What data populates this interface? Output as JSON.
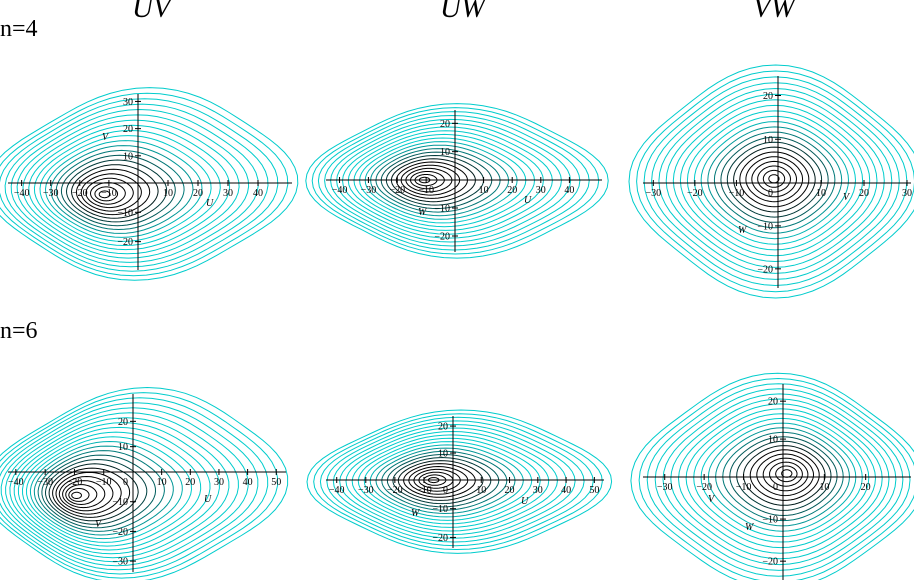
{
  "column_titles": [
    "UV",
    "UW",
    "VW"
  ],
  "row_labels": [
    "n=4",
    "n=6"
  ],
  "colors": {
    "outer_contours": "#00cccc",
    "inner_contours": "#000000",
    "axes": "#000000"
  },
  "chart_data": [
    {
      "type": "contour",
      "row": "n=4",
      "title": "UV",
      "xlabel": "U",
      "ylabel": "V",
      "xlim": [
        -44,
        50
      ],
      "ylim": [
        -29,
        32
      ],
      "xticks": [
        -40,
        -30,
        -20,
        -10,
        10,
        20,
        30,
        40
      ],
      "yticks": [
        -20,
        -10,
        10,
        20,
        30
      ],
      "peak": [
        -12,
        -4
      ],
      "levels": 22
    },
    {
      "type": "contour",
      "row": "n=4",
      "title": "UW",
      "xlabel": "U",
      "ylabel": "W",
      "xlim": [
        -44,
        50
      ],
      "ylim": [
        -25,
        24
      ],
      "xticks": [
        -40,
        -30,
        -20,
        -10,
        10,
        20,
        30,
        40
      ],
      "yticks": [
        -20,
        -10,
        10,
        20
      ],
      "peak": [
        -11,
        0
      ],
      "levels": 22
    },
    {
      "type": "contour",
      "row": "n=4",
      "title": "VW",
      "xlabel": "V",
      "ylabel": "W",
      "xlim": [
        -32,
        30
      ],
      "ylim": [
        -24,
        24
      ],
      "xticks": [
        -30,
        -20,
        -10,
        10,
        20,
        30
      ],
      "yticks": [
        -20,
        -10,
        10,
        20
      ],
      "peak": [
        -1,
        1
      ],
      "labels_zero": "0",
      "levels": 22
    },
    {
      "type": "contour",
      "row": "n=6",
      "title": "UV",
      "xlabel": "U",
      "ylabel": "V",
      "xlim": [
        -42,
        52
      ],
      "ylim": [
        -33,
        30
      ],
      "xticks": [
        -40,
        -30,
        -20,
        -10,
        10,
        20,
        30,
        40,
        50
      ],
      "yticks": [
        -30,
        -20,
        -10,
        10,
        20
      ],
      "peak": [
        -20,
        -8
      ],
      "labels_zero": "0",
      "levels": 24
    },
    {
      "type": "contour",
      "row": "n=6",
      "title": "UW",
      "xlabel": "U",
      "ylabel": "W",
      "xlim": [
        -43,
        52
      ],
      "ylim": [
        -23,
        23
      ],
      "xticks": [
        -40,
        -30,
        -20,
        -10,
        10,
        20,
        30,
        40,
        50
      ],
      "yticks": [
        -20,
        -10,
        10,
        20
      ],
      "peak": [
        -7,
        0
      ],
      "labels_zero": "0",
      "levels": 22
    },
    {
      "type": "contour",
      "row": "n=6",
      "title": "VW",
      "xlabel": "V",
      "ylabel": "W",
      "xlim": [
        -35,
        30
      ],
      "ylim": [
        -24,
        24
      ],
      "xticks": [
        -30,
        -20,
        -10,
        10,
        20
      ],
      "yticks": [
        -20,
        -10,
        10,
        20
      ],
      "peak": [
        1,
        1
      ],
      "labels_zero": "0",
      "levels": 22
    }
  ]
}
